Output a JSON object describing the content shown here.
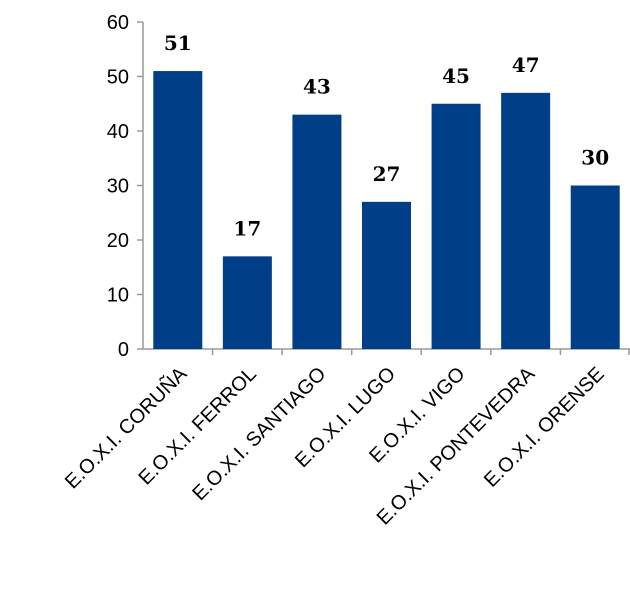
{
  "chart_data": {
    "type": "bar",
    "title": "",
    "xlabel": "",
    "ylabel": "",
    "categories": [
      "E.O.X.I. CORUÑA",
      "E.O.X.I. FERROL",
      "E.O.X.I. SANTIAGO",
      "E.O.X.I. LUGO",
      "E.O.X.I. VIGO",
      "E.O.X.I. PONTEVEDRA",
      "E.O.X.I. ORENSE"
    ],
    "values": [
      51,
      17,
      43,
      27,
      45,
      47,
      30
    ],
    "ylim": [
      0,
      60
    ],
    "yticks": [
      0,
      10,
      20,
      30,
      40,
      50,
      60
    ],
    "grid": false,
    "legend": "none",
    "bar_color": "#003F87",
    "data_labels": true
  }
}
